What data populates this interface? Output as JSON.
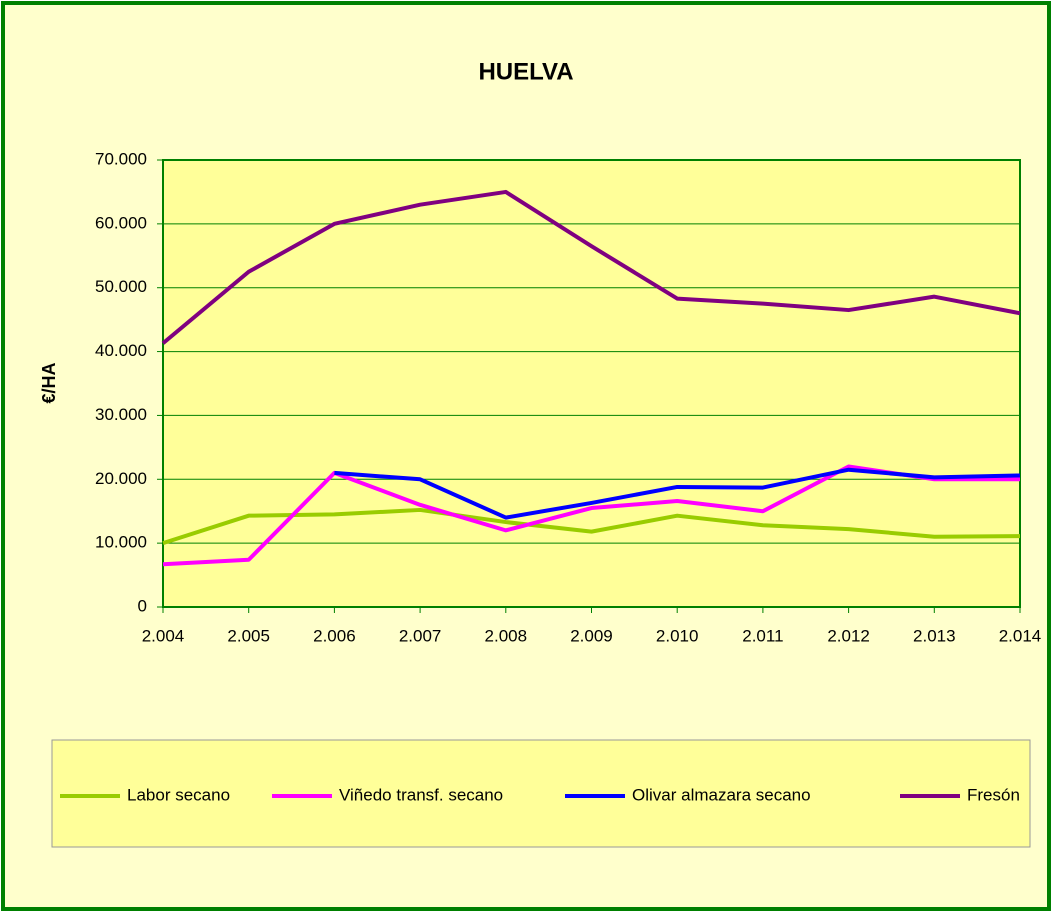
{
  "chart_data": {
    "type": "line",
    "title": "HUELVA",
    "y_label": "€/HA",
    "categories": [
      "2.004",
      "2.005",
      "2.006",
      "2.007",
      "2.008",
      "2.009",
      "2.010",
      "2.011",
      "2.012",
      "2.013",
      "2.014"
    ],
    "series": [
      {
        "name": "Labor secano",
        "color": "#99cc00",
        "values": [
          10000,
          14300,
          14500,
          15200,
          13300,
          11800,
          14300,
          12800,
          12200,
          11000,
          11100
        ]
      },
      {
        "name": "Viñedo transf. secano",
        "color": "#ff00ff",
        "values": [
          6700,
          7400,
          21000,
          16000,
          12000,
          15500,
          16600,
          15000,
          22000,
          20000,
          20000
        ]
      },
      {
        "name": "Olivar almazara secano",
        "color": "#0000ff",
        "values": [
          null,
          null,
          21000,
          20000,
          14000,
          16300,
          18800,
          18700,
          21500,
          20300,
          20600
        ]
      },
      {
        "name": "Fresón",
        "color": "#800080",
        "values": [
          41300,
          52500,
          60000,
          63000,
          65000,
          56500,
          48300,
          47500,
          46500,
          48600,
          46000
        ]
      }
    ],
    "ylim": [
      0,
      70000
    ],
    "yticks": [
      0,
      {
        "value": 10000,
        "label": "10.000"
      },
      {
        "value": 20000,
        "label": "20.000"
      },
      {
        "value": 30000,
        "label": "30.000"
      },
      {
        "value": 40000,
        "label": "40.000"
      },
      {
        "value": 50000,
        "label": "50.000"
      },
      {
        "value": 60000,
        "label": "60.000"
      },
      {
        "value": 70000,
        "label": "70.000"
      }
    ],
    "grid": true,
    "legend": "bottom"
  }
}
